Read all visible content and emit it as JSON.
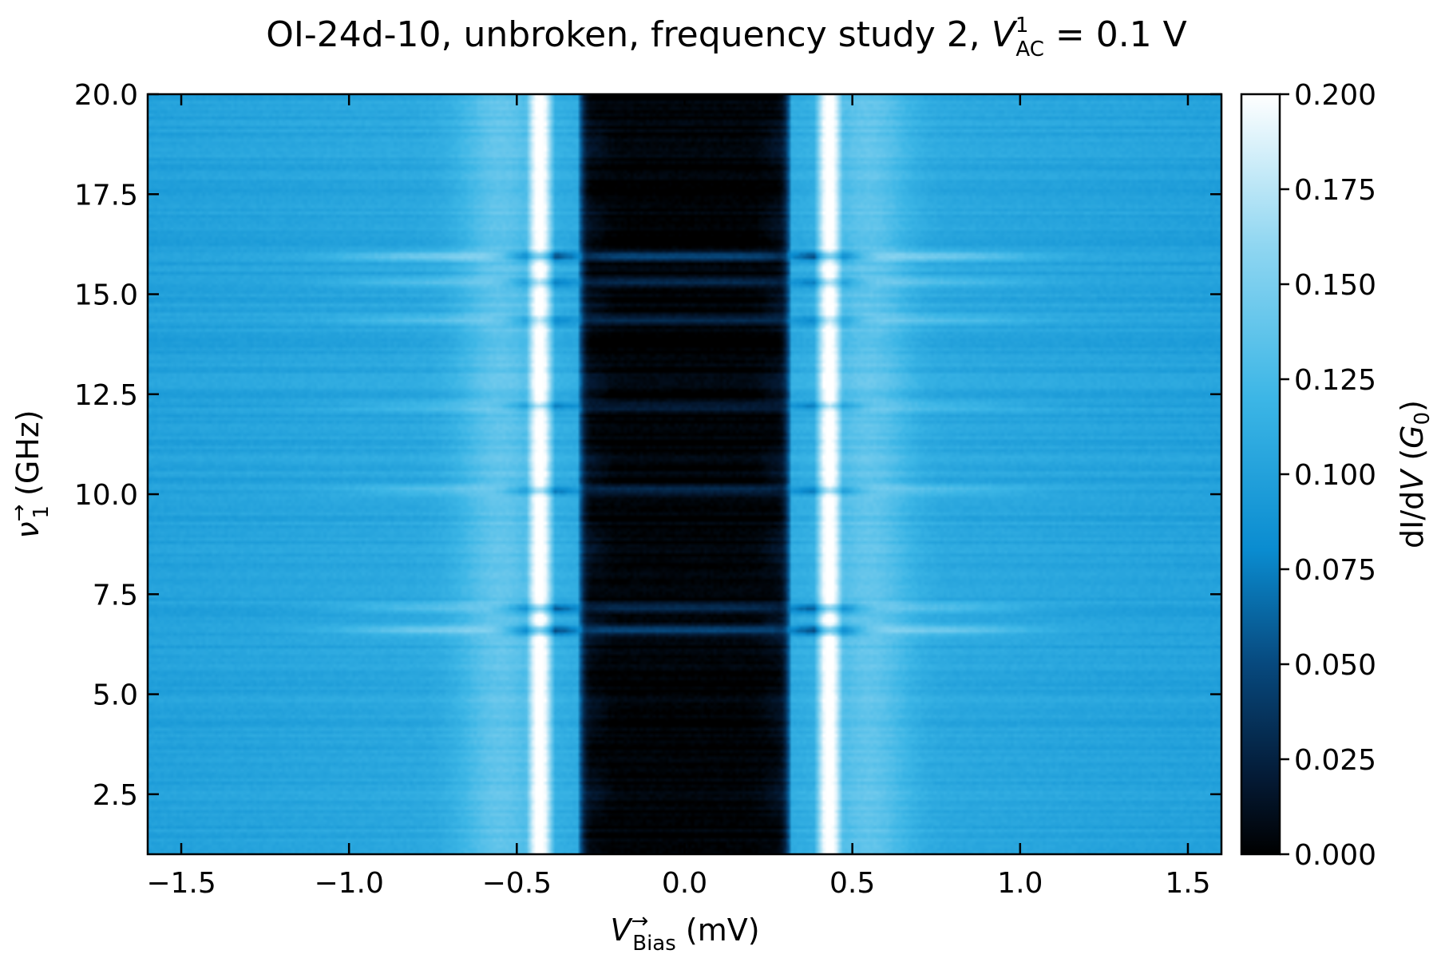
{
  "chart_data": {
    "type": "heatmap",
    "title": {
      "text": "OI-24d-10, unbroken, frequency study 2, ",
      "var": "V",
      "sup": "1",
      "sub": "AC",
      "eq": " = 0.1 V"
    },
    "xlabel": {
      "var": "V",
      "sup": "→",
      "sub": "Bias",
      "unit": " (mV)"
    },
    "ylabel": {
      "var": "ν",
      "sup": "→",
      "sub": "1",
      "unit": " (GHz)"
    },
    "colorbar_label": {
      "prefix": "dI/d",
      "var": "V",
      "open": " (",
      "gvar": "G",
      "gsub": "0",
      "close": ")"
    },
    "xlim": [
      -1.6,
      1.6
    ],
    "ylim": [
      1.0,
      20.0
    ],
    "clim": [
      0.0,
      0.2
    ],
    "x_ticks": [
      -1.5,
      -1.0,
      -0.5,
      0.0,
      0.5,
      1.0,
      1.5
    ],
    "x_tick_labels": [
      "−1.5",
      "−1.0",
      "−0.5",
      "0.0",
      "0.5",
      "1.0",
      "1.5"
    ],
    "y_ticks": [
      2.5,
      5.0,
      7.5,
      10.0,
      12.5,
      15.0,
      17.5,
      20.0
    ],
    "y_tick_labels": [
      "2.5",
      "5.0",
      "7.5",
      "10.0",
      "12.5",
      "15.0",
      "17.5",
      "20.0"
    ],
    "c_ticks": [
      0.0,
      0.025,
      0.05,
      0.075,
      0.1,
      0.125,
      0.15,
      0.175,
      0.2
    ],
    "c_tick_labels": [
      "0.000",
      "0.025",
      "0.050",
      "0.075",
      "0.100",
      "0.125",
      "0.150",
      "0.175",
      "0.200"
    ],
    "colormap": [
      "#000000",
      "#041a35",
      "#07497e",
      "#0a8cd0",
      "#3cb6e6",
      "#8fd6f1",
      "#ffffff"
    ],
    "colormap_stops": [
      0.0,
      0.1,
      0.25,
      0.4,
      0.6,
      0.8,
      1.0
    ],
    "model": {
      "description_values": "dI/dV vs bias: gap region ~0 for |V|<0.31 mV, coherence peaks ~0.2 at |V|~0.43 mV, background ~0.1",
      "gap_edge_mV": 0.31,
      "peak_center_mV": 0.43,
      "peak_width_mV": 0.055,
      "peak_height": 0.2,
      "background": 0.1,
      "gap_value": 0.002,
      "resonance_freqs_GHz": [
        6.6,
        7.15,
        10.1,
        12.2,
        14.35,
        15.3,
        15.95
      ],
      "resonance_strengths": [
        0.9,
        0.7,
        0.55,
        0.45,
        0.5,
        0.55,
        0.9
      ]
    }
  }
}
